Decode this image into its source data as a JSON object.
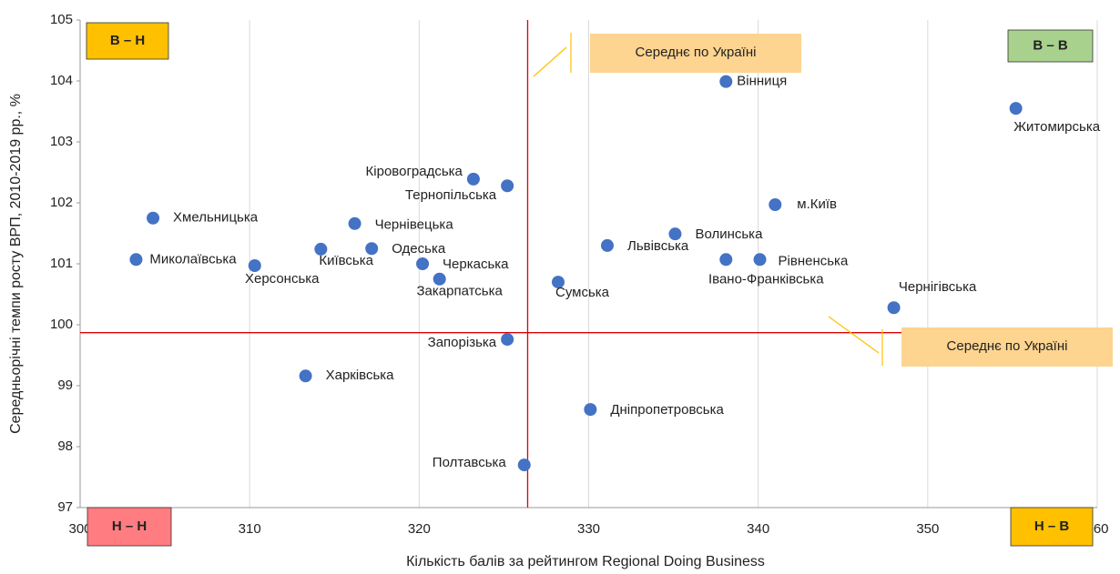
{
  "chart_data": {
    "type": "scatter",
    "x_label": "Кількість балів за рейтингом Regional Doing Business",
    "y_label": "Середньорічні темпи  росту ВРП, 2010-2019 рр., %",
    "xlim": [
      300,
      360
    ],
    "xticks": [
      300,
      310,
      320,
      330,
      340,
      350,
      360
    ],
    "ylim": [
      97,
      105
    ],
    "yticks": [
      97,
      98,
      99,
      100,
      101,
      102,
      103,
      104,
      105
    ],
    "grid": true,
    "series": [
      {
        "color": "#4472c4",
        "labels": [
          "Вінниця",
          "Житомирська",
          "Кіровоградська",
          "Тернопільська",
          "м.Київ",
          "Хмельницька",
          "Чернівецька",
          "Волинська",
          "Львівська",
          "Київська",
          "Одеська",
          "Миколаївська",
          "Івано-Франківська",
          "Рівненська",
          "Херсонська",
          "Черкаська",
          "Закарпатська",
          "Сумська",
          "Чернігівська",
          "Запорізька",
          "Харківська",
          "Дніпропетровська",
          "Полтавська"
        ],
        "x": [
          338.1,
          355.2,
          323.2,
          325.2,
          341.0,
          304.3,
          316.2,
          335.1,
          331.1,
          314.2,
          317.2,
          303.3,
          338.1,
          340.1,
          310.3,
          320.2,
          321.2,
          328.2,
          348.0,
          325.2,
          313.3,
          330.1,
          326.2
        ],
        "values": [
          103.99,
          103.55,
          102.39,
          102.28,
          101.97,
          101.75,
          101.66,
          101.49,
          101.3,
          101.24,
          101.25,
          101.07,
          101.07,
          101.07,
          100.97,
          101.0,
          100.75,
          100.7,
          100.28,
          99.76,
          99.16,
          98.61,
          97.7
        ]
      }
    ],
    "reference_lines": [
      {
        "axis": "x",
        "value": 326.4,
        "label": "Середнє по Україні",
        "color": "#e00000"
      },
      {
        "axis": "y",
        "value": 99.87,
        "label": "Середнє по Україні",
        "color": "#e00000"
      }
    ],
    "quadrant_labels": [
      {
        "label": "В – Н",
        "corner": "upper left",
        "color": "#ffc000"
      },
      {
        "label": "В – В",
        "corner": "upper right",
        "color": "#a9d18e"
      },
      {
        "label": "Н – Н",
        "corner": "lower left",
        "color": "#ff7c80"
      },
      {
        "label": "Н – В",
        "corner": "lower right",
        "color": "#ffc000"
      }
    ]
  }
}
